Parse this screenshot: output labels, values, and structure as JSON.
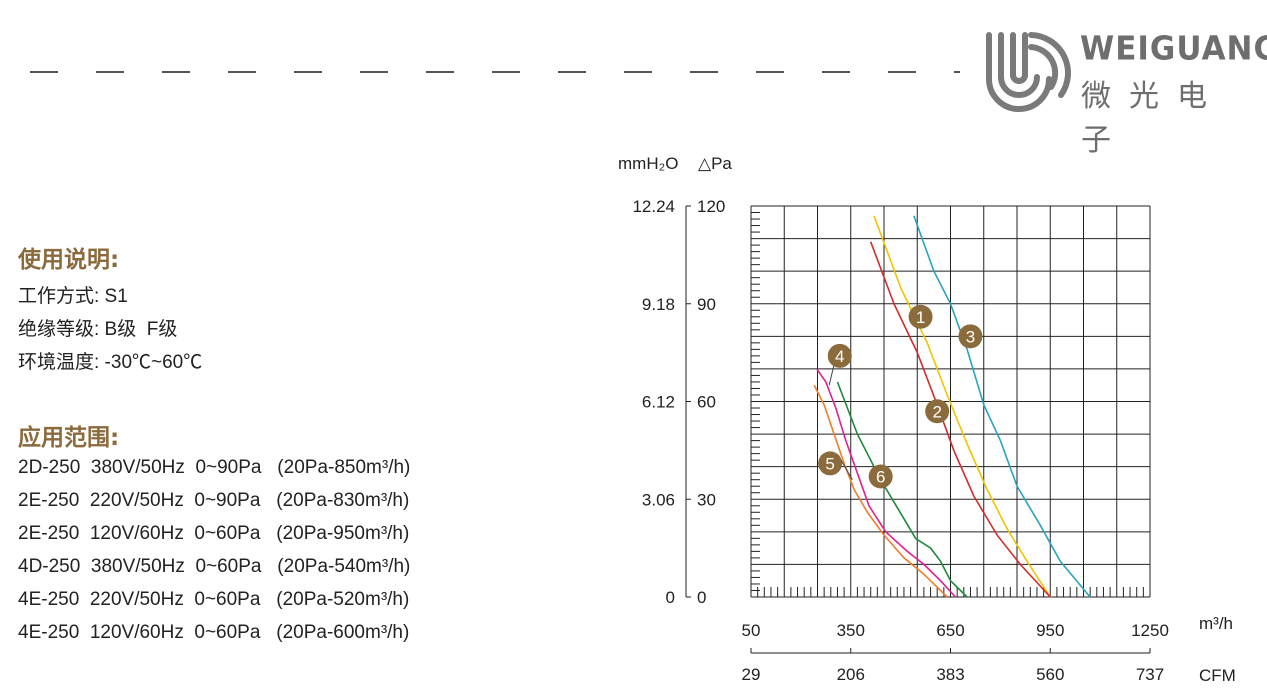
{
  "brand": {
    "name_en": "WEIGUANG",
    "name_cn": "微光电子"
  },
  "usage": {
    "title": "使用说明:",
    "lines": [
      "工作方式: S1",
      "绝缘等级: B级  F级",
      "环境温度: -30℃~60℃"
    ]
  },
  "application": {
    "title": "应用范围:",
    "rows": [
      "2D-250  380V/50Hz  0~90Pa   (20Pa-850m³/h)",
      "2E-250  220V/50Hz  0~90Pa   (20Pa-830m³/h)",
      "2E-250  120V/60Hz  0~60Pa   (20Pa-950m³/h)",
      "4D-250  380V/50Hz  0~60Pa   (20Pa-540m³/h)",
      "4E-250  220V/50Hz  0~60Pa   (20Pa-520m³/h)",
      "4E-250  120V/60Hz  0~60Pa   (20Pa-600m³/h)"
    ]
  },
  "chart_data": {
    "type": "line",
    "y_unit_left": "mmH₂O",
    "y_unit_right": "△Pa",
    "x_unit_top": "m³/h",
    "x_unit_bottom": "CFM",
    "ylim": [
      0,
      120
    ],
    "xlim": [
      50,
      1250
    ],
    "y_ticks_pa": [
      0,
      30,
      60,
      90,
      120
    ],
    "y_ticks_mmh2o": [
      "0",
      "3.06",
      "6.12",
      "9.18",
      "12.24"
    ],
    "x_ticks_m3h": [
      50,
      350,
      650,
      950,
      1250
    ],
    "x_ticks_cfm": [
      "29",
      "206",
      "383",
      "560",
      "737"
    ],
    "grid": true,
    "series": [
      {
        "name": "1",
        "color": "#f2c300",
        "label_at": [
          560,
          86
        ],
        "points": [
          [
            420,
            117
          ],
          [
            500,
            95
          ],
          [
            580,
            78
          ],
          [
            640,
            62
          ],
          [
            700,
            47
          ],
          [
            760,
            33
          ],
          [
            820,
            21
          ],
          [
            880,
            11
          ],
          [
            950,
            0
          ]
        ]
      },
      {
        "name": "2",
        "color": "#d42b2b",
        "label_at": [
          610,
          57
        ],
        "points": [
          [
            410,
            109
          ],
          [
            480,
            90
          ],
          [
            550,
            75
          ],
          [
            610,
            59
          ],
          [
            660,
            45
          ],
          [
            720,
            31
          ],
          [
            790,
            19
          ],
          [
            860,
            10
          ],
          [
            950,
            0
          ]
        ]
      },
      {
        "name": "3",
        "color": "#2aa3c1",
        "label_at": [
          710,
          80
        ],
        "points": [
          [
            540,
            117
          ],
          [
            600,
            100
          ],
          [
            650,
            90
          ],
          [
            700,
            76
          ],
          [
            750,
            59
          ],
          [
            800,
            48
          ],
          [
            850,
            34
          ],
          [
            920,
            22
          ],
          [
            980,
            11
          ],
          [
            1070,
            0
          ]
        ]
      },
      {
        "name": "4",
        "color": "#e0208f",
        "label_at": [
          317,
          74
        ],
        "points": [
          [
            248,
            70
          ],
          [
            275,
            66
          ],
          [
            305,
            58
          ],
          [
            335,
            48
          ],
          [
            370,
            38
          ],
          [
            405,
            28
          ],
          [
            455,
            20
          ],
          [
            520,
            14
          ],
          [
            570,
            10
          ],
          [
            620,
            5
          ],
          [
            665,
            0
          ]
        ]
      },
      {
        "name": "5",
        "color": "#ef7d2a",
        "label_at": [
          288,
          41
        ],
        "points": [
          [
            240,
            65
          ],
          [
            270,
            59
          ],
          [
            300,
            50
          ],
          [
            330,
            41
          ],
          [
            360,
            33
          ],
          [
            400,
            26
          ],
          [
            450,
            19
          ],
          [
            510,
            12
          ],
          [
            570,
            7
          ],
          [
            610,
            3
          ],
          [
            640,
            0
          ]
        ]
      },
      {
        "name": "6",
        "color": "#1f8a3c",
        "label_at": [
          440,
          37
        ],
        "points": [
          [
            310,
            66
          ],
          [
            340,
            58
          ],
          [
            370,
            50
          ],
          [
            405,
            43
          ],
          [
            440,
            36
          ],
          [
            475,
            30
          ],
          [
            510,
            24
          ],
          [
            545,
            18
          ],
          [
            590,
            15
          ],
          [
            620,
            11
          ],
          [
            650,
            5
          ],
          [
            700,
            0
          ]
        ]
      }
    ]
  }
}
